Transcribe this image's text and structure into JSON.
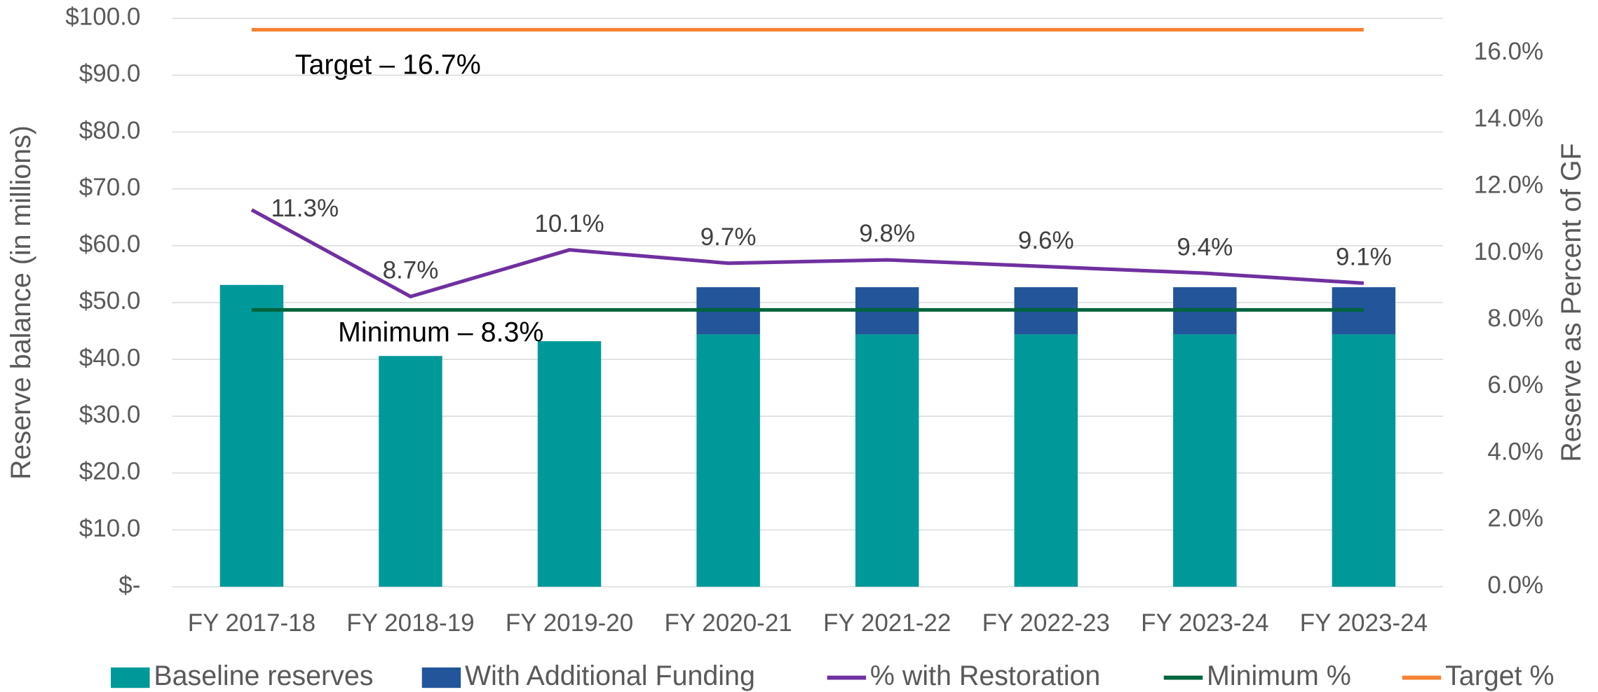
{
  "chart_data": {
    "type": "bar",
    "y_label": "Reserve balance (in millions)",
    "y2_label": "Reserve as Percent of GF",
    "categories": [
      "FY 2017-18",
      "FY 2018-19",
      "FY 2019-20",
      "FY 2020-21",
      "FY 2021-22",
      "FY 2022-23",
      "FY 2023-24",
      "FY 2023-24"
    ],
    "series": [
      {
        "name": "Baseline reserves",
        "type": "bar",
        "color": "#009999",
        "values": [
          53.1,
          40.6,
          43.2,
          44.4,
          44.4,
          44.4,
          44.4,
          44.4
        ]
      },
      {
        "name": "With Additional Funding",
        "type": "bar",
        "color": "#23559a",
        "values": [
          null,
          null,
          null,
          8.3,
          8.3,
          8.3,
          8.3,
          8.3
        ]
      },
      {
        "name": "% with Restoration",
        "type": "line",
        "axis": "y2",
        "color": "#7030a0",
        "values": [
          11.3,
          8.7,
          10.1,
          9.7,
          9.8,
          9.6,
          9.4,
          9.1
        ],
        "value_labels": [
          "11.3%",
          "8.7%",
          "10.1%",
          "9.7%",
          "9.8%",
          "9.6%",
          "9.4%",
          "9.1%"
        ]
      },
      {
        "name": "Minimum %",
        "type": "line",
        "axis": "y2",
        "color": "#00643c",
        "values": [
          8.3,
          8.3,
          8.3,
          8.3,
          8.3,
          8.3,
          8.3,
          8.3
        ]
      },
      {
        "name": "Target %",
        "type": "line",
        "axis": "y2",
        "color": "#f58232",
        "values": [
          16.7,
          16.7,
          16.7,
          16.7,
          16.7,
          16.7,
          16.7,
          16.7
        ]
      }
    ],
    "annotations": [
      "Target – 16.7%",
      "Minimum – 8.3%"
    ],
    "ylim": [
      0,
      100
    ],
    "yticks": [
      {
        "value": 0,
        "label": "$-"
      },
      {
        "value": 10,
        "label": "$10.0"
      },
      {
        "value": 20,
        "label": "$20.0"
      },
      {
        "value": 30,
        "label": "$30.0"
      },
      {
        "value": 40,
        "label": "$40.0"
      },
      {
        "value": 50,
        "label": "$50.0"
      },
      {
        "value": 60,
        "label": "$60.0"
      },
      {
        "value": 70,
        "label": "$70.0"
      },
      {
        "value": 80,
        "label": "$80.0"
      },
      {
        "value": 90,
        "label": "$90.0"
      },
      {
        "value": 100,
        "label": "$100.0"
      }
    ],
    "y2lim": [
      0,
      17.04
    ],
    "y2ticks": [
      {
        "value": 0,
        "label": "0.0%"
      },
      {
        "value": 2,
        "label": "2.0%"
      },
      {
        "value": 4,
        "label": "4.0%"
      },
      {
        "value": 6,
        "label": "6.0%"
      },
      {
        "value": 8,
        "label": "8.0%"
      },
      {
        "value": 10,
        "label": "10.0%"
      },
      {
        "value": 12,
        "label": "12.0%"
      },
      {
        "value": 14,
        "label": "14.0%"
      },
      {
        "value": 16,
        "label": "16.0%"
      }
    ],
    "grid": true,
    "legend": "bottom"
  }
}
